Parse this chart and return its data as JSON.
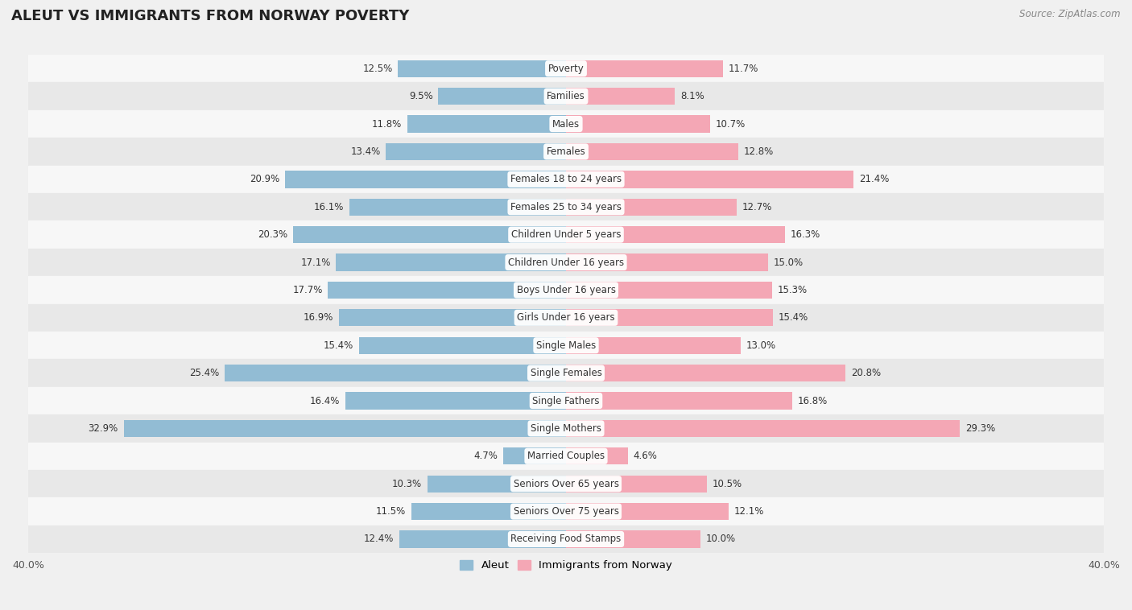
{
  "title": "ALEUT VS IMMIGRANTS FROM NORWAY POVERTY",
  "source": "Source: ZipAtlas.com",
  "categories": [
    "Poverty",
    "Families",
    "Males",
    "Females",
    "Females 18 to 24 years",
    "Females 25 to 34 years",
    "Children Under 5 years",
    "Children Under 16 years",
    "Boys Under 16 years",
    "Girls Under 16 years",
    "Single Males",
    "Single Females",
    "Single Fathers",
    "Single Mothers",
    "Married Couples",
    "Seniors Over 65 years",
    "Seniors Over 75 years",
    "Receiving Food Stamps"
  ],
  "aleut_values": [
    12.5,
    9.5,
    11.8,
    13.4,
    20.9,
    16.1,
    20.3,
    17.1,
    17.7,
    16.9,
    15.4,
    25.4,
    16.4,
    32.9,
    4.7,
    10.3,
    11.5,
    12.4
  ],
  "norway_values": [
    11.7,
    8.1,
    10.7,
    12.8,
    21.4,
    12.7,
    16.3,
    15.0,
    15.3,
    15.4,
    13.0,
    20.8,
    16.8,
    29.3,
    4.6,
    10.5,
    12.1,
    10.0
  ],
  "aleut_color": "#92bcd4",
  "norway_color": "#f4a7b5",
  "background_color": "#f0f0f0",
  "row_color_even": "#f7f7f7",
  "row_color_odd": "#e8e8e8",
  "xlim": 40.0,
  "legend_aleut": "Aleut",
  "legend_norway": "Immigrants from Norway",
  "bar_height": 0.62
}
